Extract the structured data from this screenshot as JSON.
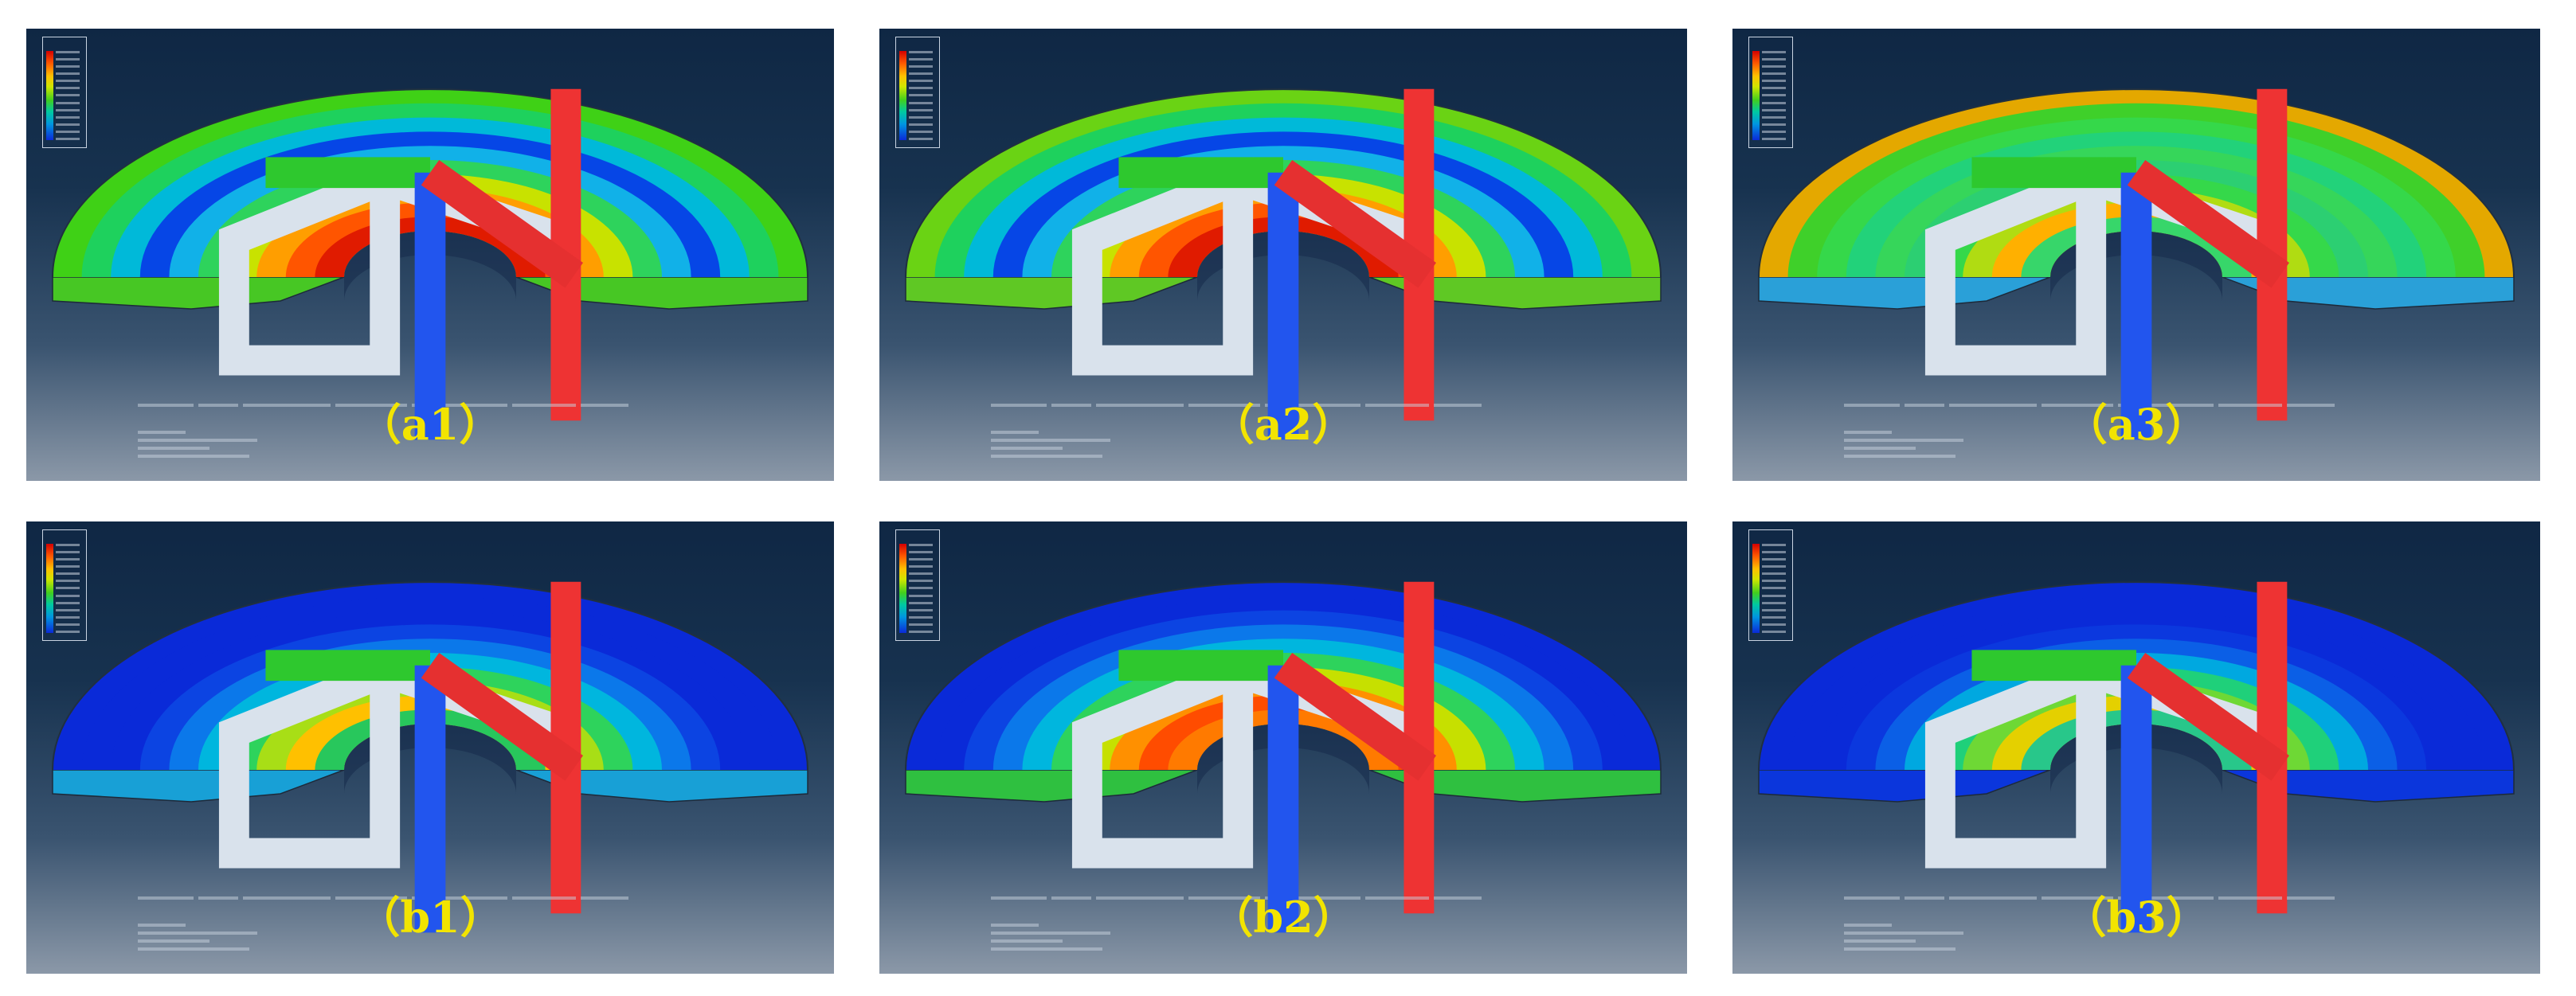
{
  "figure": {
    "panels": [
      {
        "id": "a1",
        "label": "（a1）"
      },
      {
        "id": "a2",
        "label": "（a2）"
      },
      {
        "id": "a3",
        "label": "（a3）"
      },
      {
        "id": "b1",
        "label": "（b1）"
      },
      {
        "id": "b2",
        "label": "（b2）"
      },
      {
        "id": "b3",
        "label": "（b3）"
      }
    ],
    "legend_colormap": [
      "#d40000",
      "#ff5a00",
      "#ffc000",
      "#cfe600",
      "#42cf1e",
      "#00c9a0",
      "#0096e0",
      "#0a2ad8"
    ],
    "background_colors": [
      "#0f2744",
      "#8b98a8"
    ]
  }
}
